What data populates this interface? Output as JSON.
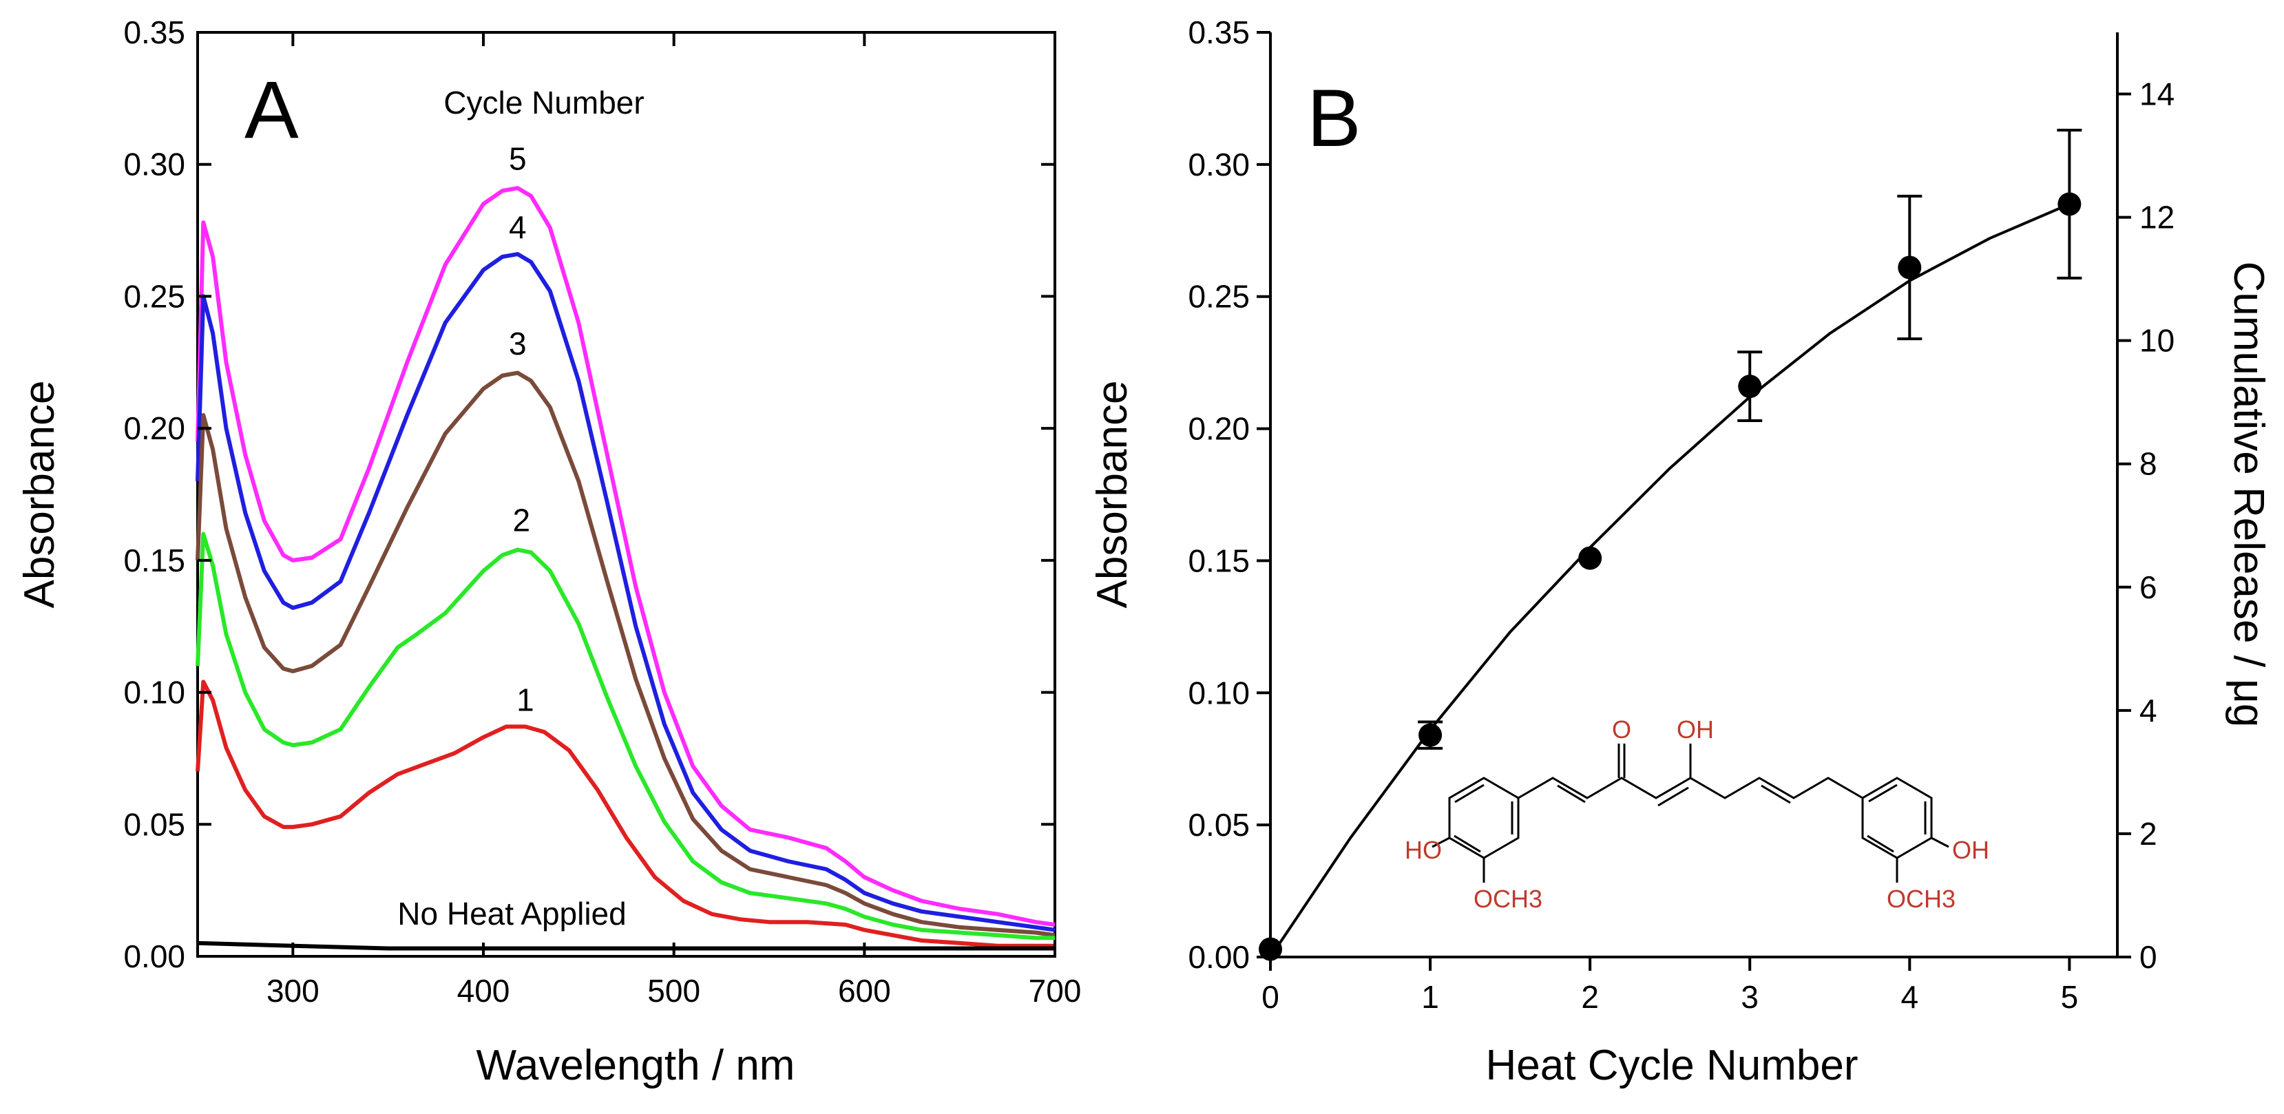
{
  "chart_data": [
    {
      "type": "line",
      "panel_label": "A",
      "xlabel": "Wavelength / nm",
      "ylabel": "Absorbance",
      "xlim": [
        250,
        700
      ],
      "ylim": [
        0,
        0.35
      ],
      "xticks": [
        300,
        400,
        500,
        600,
        700
      ],
      "yticks": [
        0.0,
        0.05,
        0.1,
        0.15,
        0.2,
        0.25,
        0.3,
        0.35
      ],
      "xtick_labels": [
        "300",
        "400",
        "500",
        "600",
        "700"
      ],
      "ytick_labels": [
        "0.00",
        "0.05",
        "0.10",
        "0.15",
        "0.20",
        "0.25",
        "0.30",
        "0.35"
      ],
      "legend_title": "Cycle Number",
      "annotations": [
        {
          "text": "5",
          "x": 418,
          "y": 0.298
        },
        {
          "text": "4",
          "x": 418,
          "y": 0.272
        },
        {
          "text": "3",
          "x": 418,
          "y": 0.228
        },
        {
          "text": "2",
          "x": 420,
          "y": 0.161
        },
        {
          "text": "1",
          "x": 422,
          "y": 0.093
        },
        {
          "text": "No Heat Applied",
          "x": 415,
          "y": 0.012
        }
      ],
      "grid": false,
      "series": [
        {
          "name": "5",
          "color": "#ff2bff",
          "x": [
            250,
            253,
            258,
            265,
            275,
            285,
            295,
            300,
            310,
            325,
            340,
            360,
            380,
            400,
            410,
            418,
            425,
            435,
            450,
            465,
            480,
            495,
            510,
            525,
            540,
            560,
            580,
            590,
            600,
            615,
            630,
            650,
            670,
            690,
            700
          ],
          "y": [
            0.195,
            0.278,
            0.265,
            0.225,
            0.19,
            0.165,
            0.152,
            0.15,
            0.151,
            0.158,
            0.185,
            0.225,
            0.262,
            0.285,
            0.29,
            0.291,
            0.288,
            0.276,
            0.24,
            0.19,
            0.14,
            0.1,
            0.072,
            0.057,
            0.048,
            0.045,
            0.041,
            0.036,
            0.03,
            0.025,
            0.021,
            0.018,
            0.016,
            0.013,
            0.012
          ]
        },
        {
          "name": "4",
          "color": "#1f1fe0",
          "x": [
            250,
            253,
            258,
            265,
            275,
            285,
            295,
            300,
            310,
            325,
            340,
            360,
            380,
            400,
            410,
            418,
            425,
            435,
            450,
            465,
            480,
            495,
            510,
            525,
            540,
            560,
            580,
            590,
            600,
            615,
            630,
            650,
            670,
            690,
            700
          ],
          "y": [
            0.18,
            0.25,
            0.236,
            0.2,
            0.168,
            0.146,
            0.134,
            0.132,
            0.134,
            0.142,
            0.168,
            0.205,
            0.24,
            0.26,
            0.265,
            0.266,
            0.263,
            0.252,
            0.218,
            0.172,
            0.125,
            0.088,
            0.062,
            0.048,
            0.04,
            0.036,
            0.033,
            0.029,
            0.024,
            0.02,
            0.017,
            0.015,
            0.013,
            0.011,
            0.01
          ]
        },
        {
          "name": "3",
          "color": "#7a4a3a",
          "x": [
            250,
            253,
            258,
            265,
            275,
            285,
            295,
            300,
            310,
            325,
            340,
            360,
            380,
            400,
            410,
            418,
            425,
            435,
            450,
            465,
            480,
            495,
            510,
            525,
            540,
            560,
            580,
            590,
            600,
            615,
            630,
            650,
            670,
            690,
            700
          ],
          "y": [
            0.15,
            0.205,
            0.192,
            0.162,
            0.136,
            0.117,
            0.109,
            0.108,
            0.11,
            0.118,
            0.14,
            0.17,
            0.198,
            0.215,
            0.22,
            0.221,
            0.218,
            0.208,
            0.18,
            0.142,
            0.105,
            0.075,
            0.052,
            0.04,
            0.033,
            0.03,
            0.027,
            0.024,
            0.02,
            0.016,
            0.013,
            0.011,
            0.01,
            0.009,
            0.008
          ]
        },
        {
          "name": "2",
          "color": "#29e829",
          "x": [
            250,
            253,
            258,
            265,
            275,
            285,
            295,
            300,
            310,
            325,
            340,
            355,
            365,
            380,
            400,
            410,
            418,
            425,
            435,
            450,
            465,
            480,
            495,
            510,
            525,
            540,
            560,
            580,
            590,
            600,
            615,
            630,
            650,
            670,
            690,
            700
          ],
          "y": [
            0.11,
            0.16,
            0.148,
            0.122,
            0.1,
            0.086,
            0.081,
            0.08,
            0.081,
            0.086,
            0.102,
            0.117,
            0.122,
            0.13,
            0.146,
            0.152,
            0.154,
            0.153,
            0.146,
            0.126,
            0.098,
            0.072,
            0.051,
            0.036,
            0.028,
            0.024,
            0.022,
            0.02,
            0.018,
            0.015,
            0.012,
            0.01,
            0.009,
            0.008,
            0.007,
            0.007
          ]
        },
        {
          "name": "1",
          "color": "#e02020",
          "x": [
            250,
            253,
            258,
            265,
            275,
            285,
            295,
            300,
            310,
            325,
            340,
            355,
            370,
            385,
            400,
            412,
            422,
            432,
            445,
            460,
            475,
            490,
            505,
            520,
            535,
            550,
            570,
            590,
            600,
            615,
            630,
            650,
            670,
            690,
            700
          ],
          "y": [
            0.07,
            0.104,
            0.097,
            0.079,
            0.063,
            0.053,
            0.049,
            0.049,
            0.05,
            0.053,
            0.062,
            0.069,
            0.073,
            0.077,
            0.083,
            0.087,
            0.087,
            0.085,
            0.078,
            0.063,
            0.045,
            0.03,
            0.021,
            0.016,
            0.014,
            0.013,
            0.013,
            0.012,
            0.01,
            0.008,
            0.006,
            0.005,
            0.004,
            0.004,
            0.004
          ]
        },
        {
          "name": "No Heat Applied",
          "color": "#000000",
          "x": [
            250,
            300,
            350,
            400,
            450,
            500,
            550,
            600,
            650,
            700
          ],
          "y": [
            0.005,
            0.004,
            0.003,
            0.003,
            0.003,
            0.003,
            0.003,
            0.003,
            0.003,
            0.003
          ]
        }
      ]
    },
    {
      "type": "scatter",
      "panel_label": "B",
      "xlabel": "Heat Cycle Number",
      "ylabel": "Absorbance",
      "y2label": "Cumulative Release / μg",
      "xlim": [
        0,
        5.3
      ],
      "ylim": [
        0,
        0.35
      ],
      "y2lim": [
        0,
        15
      ],
      "xticks": [
        0,
        1,
        2,
        3,
        4,
        5
      ],
      "yticks": [
        0.0,
        0.05,
        0.1,
        0.15,
        0.2,
        0.25,
        0.3,
        0.35
      ],
      "y2ticks": [
        0,
        2,
        4,
        6,
        8,
        10,
        12,
        14
      ],
      "xtick_labels": [
        "0",
        "1",
        "2",
        "3",
        "4",
        "5"
      ],
      "ytick_labels": [
        "0.00",
        "0.05",
        "0.10",
        "0.15",
        "0.20",
        "0.25",
        "0.30",
        "0.35"
      ],
      "y2tick_labels": [
        "0",
        "2",
        "4",
        "6",
        "8",
        "10",
        "12",
        "14"
      ],
      "grid": false,
      "points": {
        "x": [
          0,
          1,
          2,
          3,
          4,
          5
        ],
        "y": [
          0.003,
          0.084,
          0.151,
          0.216,
          0.261,
          0.285
        ],
        "err": [
          0,
          0.005,
          0,
          0.013,
          0.027,
          0.028
        ]
      },
      "fit_curve": {
        "x": [
          0,
          0.5,
          1,
          1.5,
          2,
          2.5,
          3,
          3.5,
          4,
          4.5,
          5
        ],
        "y": [
          0,
          0.045,
          0.086,
          0.123,
          0.155,
          0.185,
          0.212,
          0.236,
          0.256,
          0.272,
          0.285
        ]
      },
      "structure_labels": {
        "ketone_o": "O",
        "enol_oh": "OH",
        "left_ho": "HO",
        "right_oh": "OH",
        "left_och3": "OCH3",
        "right_och3": "OCH3"
      }
    }
  ]
}
